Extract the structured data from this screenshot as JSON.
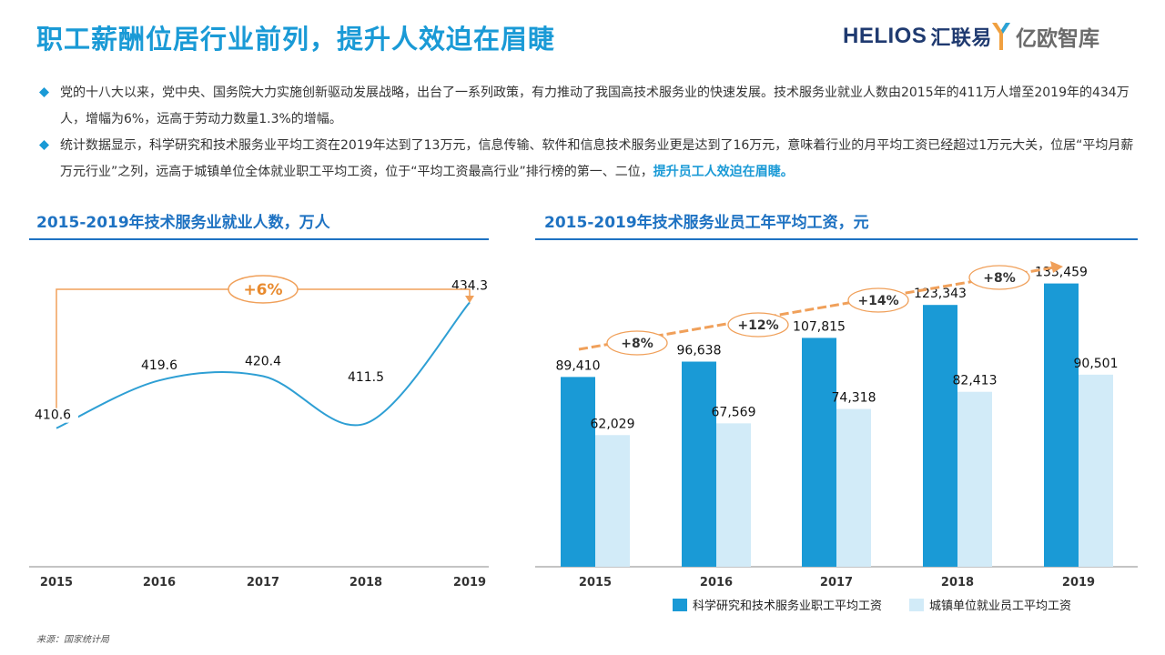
{
  "header": {
    "title": "职工薪酬位居行业前列，提升人效迫在眉睫",
    "logo_helios": "HELIOS",
    "logo_huilianyi": "汇联易",
    "logo_yiou": "亿欧智库"
  },
  "bullets": [
    {
      "text": "党的十八大以来，党中央、国务院大力实施创新驱动发展战略，出台了一系列政策，有力推动了我国高技术服务业的快速发展。技术服务业就业人数由2015年的411万人增至2019年的434万人，增幅为6%，远高于劳动力数量1.3%的增幅。",
      "highlight": ""
    },
    {
      "text": "统计数据显示，科学研究和技术服务业平均工资在2019年达到了13万元，信息传输、软件和信息技术服务业更是达到了16万元，意味着行业的月平均工资已经超过1万元大关，位居“平均月薪万元行业”之列，远高于城镇单位全体就业职工平均工资，位于“平均工资最高行业”排行榜的第一、二位，",
      "highlight": "提升员工人效迫在眉睫。"
    }
  ],
  "colors": {
    "accent": "#1a9ad6",
    "dark_bar": "#1a9ad6",
    "light_bar": "#d2ebf8",
    "orange": "#f0a05a",
    "line": "#2e9fd4",
    "rule": "#1e72c2"
  },
  "chart_data": [
    {
      "type": "line",
      "title": "2015-2019年技术服务业就业人数，万人",
      "categories": [
        "2015",
        "2016",
        "2017",
        "2018",
        "2019"
      ],
      "values": [
        410.6,
        419.6,
        420.4,
        411.5,
        434.3
      ],
      "value_labels": [
        "410.6",
        "419.6",
        "420.4",
        "411.5",
        "434.3"
      ],
      "growth_annotation": "+6%",
      "ylim": [
        385,
        445
      ]
    },
    {
      "type": "bar",
      "title": "2015-2019年技术服务业员工年平均工资，元",
      "categories": [
        "2015",
        "2016",
        "2017",
        "2018",
        "2019"
      ],
      "series": [
        {
          "name": "科学研究和技术服务业职工平均工资",
          "values": [
            89410,
            96638,
            107815,
            123343,
            133459
          ],
          "labels": [
            "89,410",
            "96,638",
            "107,815",
            "123,343",
            "133,459"
          ]
        },
        {
          "name": "城镇单位就业员工平均工资",
          "values": [
            62029,
            67569,
            74318,
            82413,
            90501
          ],
          "labels": [
            "62,029",
            "67,569",
            "74,318",
            "82,413",
            "90,501"
          ]
        }
      ],
      "growth_annotations": [
        "+8%",
        "+12%",
        "+14%",
        "+8%"
      ],
      "ylim": [
        0,
        150000
      ]
    }
  ],
  "footer": {
    "source": "来源：国家统计局"
  }
}
